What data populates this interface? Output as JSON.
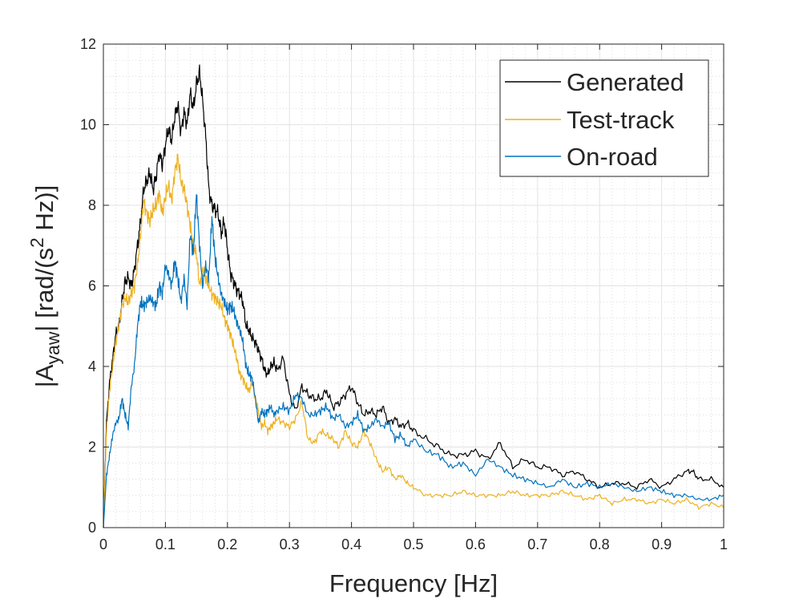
{
  "chart_data": {
    "type": "line",
    "title": "",
    "xlabel": "Frequency [Hz]",
    "ylabel": {
      "prefix": "|A",
      "subscript": "yaw",
      "middle": "| [rad/(s",
      "superscript": "2",
      "suffix": " Hz)]"
    },
    "xlim": [
      0,
      1
    ],
    "ylim": [
      0,
      12
    ],
    "grid": true,
    "minor_grid": true,
    "legend_position": "top-right",
    "x_ticks": [
      0,
      0.1,
      0.2,
      0.3,
      0.4,
      0.5,
      0.6,
      0.7,
      0.8,
      0.9,
      1
    ],
    "x_tick_labels": [
      "0",
      "0.1",
      "0.2",
      "0.3",
      "0.4",
      "0.5",
      "0.6",
      "0.7",
      "0.8",
      "0.9",
      "1"
    ],
    "y_ticks": [
      0,
      2,
      4,
      6,
      8,
      10,
      12
    ],
    "y_tick_labels": [
      "0",
      "2",
      "4",
      "6",
      "8",
      "10",
      "12"
    ],
    "series": [
      {
        "name": "Generated",
        "color": "#000000",
        "x": [
          0,
          0.005,
          0.01,
          0.015,
          0.02,
          0.025,
          0.03,
          0.035,
          0.04,
          0.045,
          0.05,
          0.055,
          0.06,
          0.065,
          0.07,
          0.075,
          0.08,
          0.085,
          0.09,
          0.095,
          0.1,
          0.105,
          0.11,
          0.115,
          0.12,
          0.125,
          0.13,
          0.135,
          0.14,
          0.145,
          0.15,
          0.155,
          0.16,
          0.165,
          0.17,
          0.175,
          0.18,
          0.185,
          0.19,
          0.195,
          0.2,
          0.205,
          0.21,
          0.215,
          0.22,
          0.225,
          0.23,
          0.235,
          0.24,
          0.245,
          0.25,
          0.255,
          0.26,
          0.265,
          0.27,
          0.275,
          0.28,
          0.29,
          0.3,
          0.31,
          0.32,
          0.33,
          0.34,
          0.35,
          0.36,
          0.37,
          0.38,
          0.39,
          0.4,
          0.41,
          0.42,
          0.43,
          0.44,
          0.45,
          0.46,
          0.47,
          0.48,
          0.49,
          0.5,
          0.52,
          0.54,
          0.56,
          0.58,
          0.6,
          0.62,
          0.64,
          0.66,
          0.68,
          0.7,
          0.72,
          0.74,
          0.76,
          0.78,
          0.8,
          0.82,
          0.84,
          0.86,
          0.88,
          0.9,
          0.92,
          0.94,
          0.95,
          0.96,
          0.98,
          1
        ],
        "values": [
          0,
          2.6,
          3.6,
          4.2,
          4.8,
          5.0,
          5.6,
          6.1,
          6.2,
          6.0,
          6.4,
          7.0,
          7.6,
          8.4,
          8.6,
          8.8,
          8.4,
          8.7,
          9.3,
          9.0,
          9.5,
          9.9,
          9.6,
          10.2,
          10.5,
          9.8,
          10.3,
          10.0,
          10.8,
          10.4,
          11.0,
          11.3,
          10.6,
          9.7,
          8.4,
          8.0,
          7.9,
          7.8,
          7.3,
          7.6,
          6.9,
          6.3,
          6.1,
          5.9,
          5.8,
          5.6,
          5.0,
          4.9,
          4.7,
          4.6,
          4.4,
          4.2,
          3.9,
          3.8,
          4.0,
          4.1,
          3.9,
          4.2,
          3.3,
          2.9,
          3.5,
          3.3,
          3.2,
          3.2,
          3.4,
          3.0,
          3.1,
          3.3,
          3.5,
          3.1,
          2.8,
          2.9,
          2.8,
          3.0,
          2.6,
          2.7,
          2.5,
          2.6,
          2.4,
          2.2,
          2.0,
          1.8,
          1.8,
          1.9,
          1.7,
          2.1,
          1.5,
          1.7,
          1.5,
          1.5,
          1.3,
          1.4,
          1.2,
          1.0,
          1.1,
          1.1,
          1.0,
          1.2,
          1.0,
          1.2,
          1.4,
          1.4,
          1.2,
          1.2,
          1.0
        ]
      },
      {
        "name": "Test-track",
        "color": "#EDB120",
        "x": [
          0,
          0.005,
          0.01,
          0.015,
          0.02,
          0.025,
          0.03,
          0.035,
          0.04,
          0.045,
          0.05,
          0.055,
          0.06,
          0.065,
          0.07,
          0.075,
          0.08,
          0.085,
          0.09,
          0.095,
          0.1,
          0.105,
          0.11,
          0.115,
          0.12,
          0.125,
          0.13,
          0.135,
          0.14,
          0.145,
          0.15,
          0.155,
          0.16,
          0.165,
          0.17,
          0.175,
          0.18,
          0.185,
          0.19,
          0.195,
          0.2,
          0.205,
          0.21,
          0.215,
          0.22,
          0.225,
          0.23,
          0.235,
          0.24,
          0.245,
          0.25,
          0.255,
          0.26,
          0.265,
          0.27,
          0.275,
          0.28,
          0.29,
          0.3,
          0.31,
          0.32,
          0.33,
          0.34,
          0.35,
          0.36,
          0.37,
          0.38,
          0.39,
          0.4,
          0.41,
          0.42,
          0.43,
          0.44,
          0.45,
          0.46,
          0.47,
          0.48,
          0.49,
          0.5,
          0.52,
          0.54,
          0.56,
          0.58,
          0.6,
          0.62,
          0.64,
          0.66,
          0.68,
          0.7,
          0.72,
          0.74,
          0.76,
          0.78,
          0.8,
          0.82,
          0.84,
          0.86,
          0.88,
          0.9,
          0.92,
          0.94,
          0.96,
          0.98,
          1
        ],
        "values": [
          0,
          2.4,
          3.4,
          4.0,
          4.6,
          5.0,
          5.5,
          5.7,
          5.6,
          5.8,
          6.0,
          6.5,
          7.3,
          8.1,
          7.8,
          7.6,
          7.9,
          8.0,
          8.3,
          7.8,
          8.2,
          8.5,
          8.1,
          8.8,
          9.2,
          8.6,
          8.4,
          8.0,
          7.5,
          7.0,
          6.8,
          6.0,
          6.4,
          6.2,
          6.0,
          5.8,
          5.7,
          5.6,
          5.5,
          5.2,
          5.0,
          4.8,
          4.5,
          4.2,
          3.8,
          3.7,
          3.5,
          3.4,
          3.6,
          3.2,
          2.9,
          2.5,
          2.6,
          2.4,
          2.5,
          2.6,
          2.7,
          2.6,
          2.5,
          2.7,
          3.1,
          2.2,
          2.1,
          2.4,
          2.3,
          2.2,
          2.0,
          2.4,
          2.1,
          2.0,
          2.4,
          2.1,
          1.7,
          1.4,
          1.5,
          1.2,
          1.3,
          1.1,
          1.0,
          0.8,
          0.8,
          0.8,
          0.9,
          0.8,
          0.8,
          0.8,
          0.9,
          0.8,
          0.8,
          0.8,
          0.9,
          0.8,
          0.7,
          0.8,
          0.6,
          0.7,
          0.7,
          0.6,
          0.7,
          0.6,
          0.7,
          0.5,
          0.6,
          0.5
        ]
      },
      {
        "name": "On-road",
        "color": "#0072BD",
        "x": [
          0,
          0.005,
          0.01,
          0.015,
          0.02,
          0.025,
          0.03,
          0.035,
          0.04,
          0.045,
          0.05,
          0.055,
          0.06,
          0.065,
          0.07,
          0.075,
          0.08,
          0.085,
          0.09,
          0.095,
          0.1,
          0.105,
          0.11,
          0.115,
          0.12,
          0.125,
          0.13,
          0.135,
          0.14,
          0.145,
          0.15,
          0.155,
          0.16,
          0.165,
          0.17,
          0.175,
          0.18,
          0.185,
          0.19,
          0.195,
          0.2,
          0.205,
          0.21,
          0.215,
          0.22,
          0.225,
          0.23,
          0.235,
          0.24,
          0.245,
          0.25,
          0.255,
          0.26,
          0.265,
          0.27,
          0.275,
          0.28,
          0.29,
          0.3,
          0.31,
          0.32,
          0.33,
          0.34,
          0.35,
          0.36,
          0.37,
          0.38,
          0.39,
          0.4,
          0.41,
          0.42,
          0.43,
          0.44,
          0.45,
          0.46,
          0.47,
          0.48,
          0.49,
          0.5,
          0.52,
          0.54,
          0.56,
          0.58,
          0.6,
          0.62,
          0.64,
          0.66,
          0.68,
          0.7,
          0.72,
          0.74,
          0.76,
          0.78,
          0.8,
          0.82,
          0.84,
          0.86,
          0.88,
          0.9,
          0.92,
          0.94,
          0.96,
          0.98,
          1
        ],
        "values": [
          0,
          1.3,
          1.8,
          2.3,
          2.6,
          2.7,
          3.2,
          2.8,
          2.5,
          3.5,
          4.0,
          5.0,
          5.6,
          5.5,
          5.6,
          5.7,
          5.6,
          5.5,
          6.0,
          5.8,
          6.5,
          6.3,
          6.0,
          6.6,
          6.2,
          5.6,
          6.2,
          5.5,
          7.3,
          6.8,
          8.3,
          7.0,
          6.0,
          6.5,
          6.2,
          7.7,
          6.7,
          6.2,
          5.8,
          5.6,
          5.4,
          5.5,
          5.4,
          5.1,
          4.9,
          4.6,
          4.0,
          3.8,
          3.7,
          3.2,
          2.6,
          2.9,
          2.8,
          2.9,
          3.0,
          2.8,
          2.9,
          3.0,
          2.9,
          3.3,
          3.2,
          2.8,
          2.8,
          2.9,
          3.0,
          2.7,
          2.8,
          2.5,
          2.6,
          2.8,
          2.4,
          2.5,
          2.7,
          2.5,
          2.6,
          2.2,
          2.3,
          2.0,
          2.2,
          1.9,
          1.8,
          1.5,
          1.6,
          1.3,
          1.7,
          1.5,
          1.3,
          1.2,
          1.1,
          1.0,
          1.2,
          1.0,
          1.1,
          1.0,
          1.1,
          1.0,
          0.9,
          1.0,
          0.9,
          0.8,
          0.8,
          0.7,
          0.7,
          0.8
        ]
      }
    ]
  }
}
